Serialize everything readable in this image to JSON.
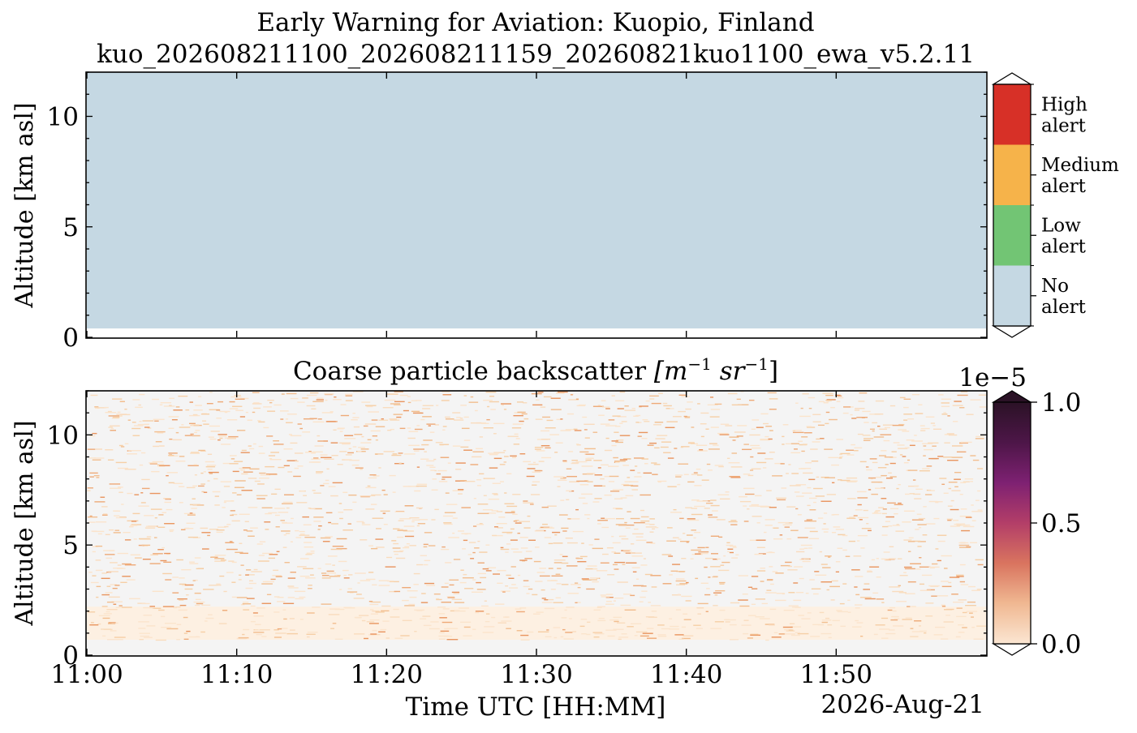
{
  "figure": {
    "title_line1": "Early Warning for Aviation: Kuopio, Finland",
    "title_line2": "kuo_202608211100_202608211159_20260821kuo1100_ewa_v5.2.11",
    "date_label": "2026-Aug-21"
  },
  "chart_data": [
    {
      "type": "heatmap",
      "name": "alert-panel",
      "title": "",
      "xlabel": "",
      "ylabel": "Altitude [km asl]",
      "xlim": [
        "11:00",
        "12:00"
      ],
      "ylim": [
        0,
        12
      ],
      "yticks": [
        "0",
        "5",
        "10"
      ],
      "fill": {
        "category": "No alert",
        "altitude_km": [
          0.4,
          12
        ]
      },
      "colorbar": {
        "type": "categorical",
        "categories": [
          {
            "label_line1": "No",
            "label_line2": "alert",
            "color": "#c5d8e3"
          },
          {
            "label_line1": "Low",
            "label_line2": "alert",
            "color": "#72c574"
          },
          {
            "label_line1": "Medium",
            "label_line2": "alert",
            "color": "#f6b34a"
          },
          {
            "label_line1": "High",
            "label_line2": "alert",
            "color": "#d73027"
          }
        ]
      }
    },
    {
      "type": "heatmap",
      "name": "backscatter-panel",
      "title_prefix": "Coarse particle backscatter ",
      "title_units": "[m",
      "title_exp1": "−1",
      "title_units2": " sr",
      "title_exp2": "−1",
      "title_close": "]",
      "xlabel": "Time UTC [HH:MM]",
      "ylabel": "Altitude [km asl]",
      "xlim": [
        "11:00",
        "12:00"
      ],
      "ylim": [
        0,
        12
      ],
      "xticks": [
        "11:00",
        "11:10",
        "11:20",
        "11:30",
        "11:40",
        "11:50"
      ],
      "yticks": [
        "0",
        "5",
        "10"
      ],
      "data_altitude_km": [
        0.7,
        12
      ],
      "colorbar": {
        "scale_label": "1e−5",
        "range": [
          0,
          1.0
        ],
        "ticks": [
          "0.0",
          "0.5",
          "1.0"
        ],
        "colors": [
          "#fbe6d2",
          "#f0b892",
          "#d9745f",
          "#b33e68",
          "#7e2172",
          "#4d1648",
          "#2b1226"
        ]
      }
    }
  ]
}
